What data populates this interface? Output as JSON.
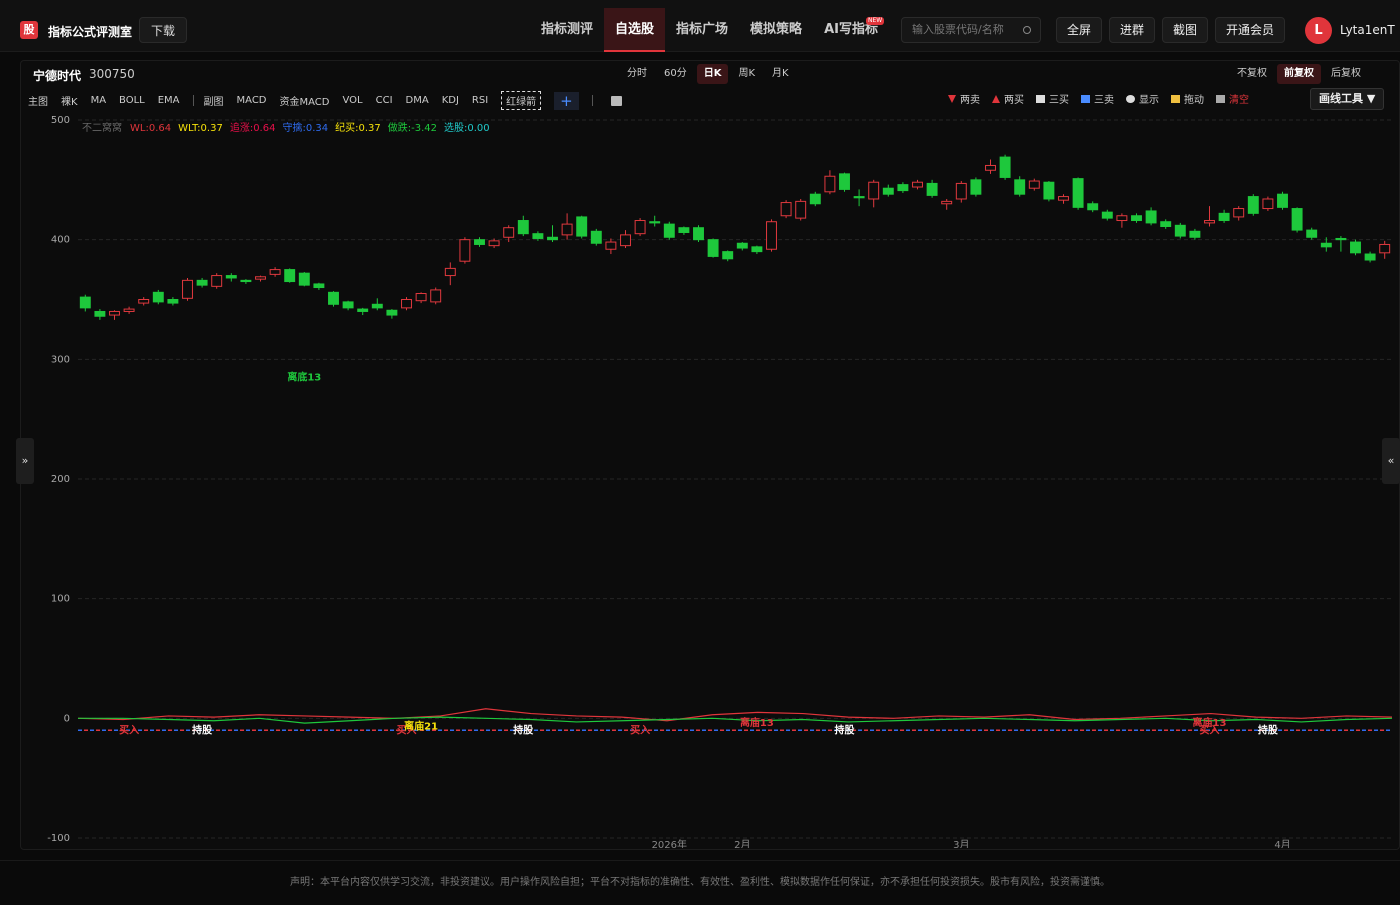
{
  "header": {
    "logo": "股",
    "app_name": "指标公式评测室",
    "download": "下载",
    "nav": [
      "指标测评",
      "自选股",
      "指标广场",
      "模拟策略",
      "AI写指标"
    ],
    "new_badge": "NEW",
    "search_placeholder": "输入股票代码/名称",
    "buttons": [
      "全屏",
      "进群",
      "截图",
      "开通会员"
    ],
    "avatar": "L",
    "username": "Lyta1enT"
  },
  "quote_bar": {
    "name": "宁德时代",
    "code": "300750",
    "periods": [
      "分时",
      "60分",
      "日K",
      "周K",
      "月K"
    ],
    "adjust": [
      "不复权",
      "前复权",
      "后复权"
    ]
  },
  "toolbar": {
    "main": [
      "主图",
      "裸K",
      "MA",
      "BOLL",
      "EMA"
    ],
    "sub": [
      "副图",
      "MACD",
      "资金MACD",
      "VOL",
      "CCI",
      "DMA",
      "KDJ",
      "RSI",
      "红绿箭"
    ],
    "add": "+",
    "tools": [
      "两卖",
      "两买",
      "三买",
      "三卖",
      "显示",
      "拖动",
      "清空"
    ],
    "draw_tool": "画线工具 ▼"
  },
  "side_toggles": [
    "»",
    "«"
  ],
  "chart_data": {
    "type": "candlestick",
    "legend_title": "不二窝窝",
    "legend_items": [
      {
        "text": "WL:0.64",
        "color": "#e0353b"
      },
      {
        "text": "WLT:0.37",
        "color": "#f5e10a"
      },
      {
        "text": "追涨:0.64",
        "color": "#e8104a"
      },
      {
        "text": "守擒:0.34",
        "color": "#2f6cf0"
      },
      {
        "text": "纪买:0.37",
        "color": "#f5e10a"
      },
      {
        "text": "做跌:-3.42",
        "color": "#1ec83c"
      },
      {
        "text": "选股:0.00",
        "color": "#20c9c9"
      }
    ],
    "up_color": "#e0393e",
    "down_color": "#1ec83c",
    "candles": [
      [
        352,
        354,
        340,
        343
      ],
      [
        340,
        342,
        333,
        336
      ],
      [
        337,
        341,
        333,
        340
      ],
      [
        340,
        344,
        338,
        342
      ],
      [
        347,
        352,
        345,
        350
      ],
      [
        356,
        358,
        346,
        348
      ],
      [
        350,
        352,
        345,
        347
      ],
      [
        351,
        368,
        349,
        366
      ],
      [
        366,
        368,
        360,
        362
      ],
      [
        361,
        372,
        359,
        370
      ],
      [
        370,
        372,
        365,
        368
      ],
      [
        366,
        367,
        363,
        365
      ],
      [
        367,
        370,
        365,
        369
      ],
      [
        371,
        377,
        369,
        375
      ],
      [
        375,
        376,
        364,
        365
      ],
      [
        372,
        373,
        361,
        362
      ],
      [
        363,
        364,
        358,
        360
      ],
      [
        356,
        357,
        344,
        346
      ],
      [
        348,
        349,
        341,
        343
      ],
      [
        342,
        343,
        337,
        340
      ],
      [
        346,
        351,
        341,
        343
      ],
      [
        341,
        342,
        334,
        337
      ],
      [
        343,
        352,
        341,
        350
      ],
      [
        349,
        356,
        347,
        355
      ],
      [
        348,
        360,
        346,
        358
      ],
      [
        370,
        381,
        362,
        376
      ],
      [
        382,
        402,
        380,
        400
      ],
      [
        400,
        402,
        394,
        396
      ],
      [
        395,
        401,
        393,
        399
      ],
      [
        402,
        412,
        398,
        410
      ],
      [
        416,
        420,
        403,
        405
      ],
      [
        405,
        407,
        399,
        401
      ],
      [
        402,
        412,
        398,
        400
      ],
      [
        404,
        422,
        400,
        413
      ],
      [
        419,
        420,
        401,
        403
      ],
      [
        407,
        409,
        395,
        397
      ],
      [
        392,
        401,
        388,
        398
      ],
      [
        395,
        408,
        393,
        404
      ],
      [
        405,
        418,
        403,
        416
      ],
      [
        415,
        420,
        411,
        414
      ],
      [
        413,
        415,
        400,
        402
      ],
      [
        410,
        411,
        404,
        406
      ],
      [
        410,
        412,
        398,
        400
      ],
      [
        400,
        401,
        385,
        386
      ],
      [
        390,
        391,
        382,
        384
      ],
      [
        397,
        398,
        391,
        393
      ],
      [
        394,
        395,
        388,
        390
      ],
      [
        392,
        417,
        390,
        415
      ],
      [
        420,
        433,
        418,
        431
      ],
      [
        418,
        434,
        416,
        432
      ],
      [
        438,
        440,
        428,
        430
      ],
      [
        440,
        458,
        438,
        453
      ],
      [
        455,
        456,
        440,
        442
      ],
      [
        436,
        442,
        428,
        435
      ],
      [
        434,
        450,
        427,
        448
      ],
      [
        443,
        446,
        436,
        438
      ],
      [
        446,
        448,
        439,
        441
      ],
      [
        444,
        450,
        442,
        448
      ],
      [
        447,
        450,
        435,
        437
      ],
      [
        430,
        434,
        425,
        432
      ],
      [
        434,
        449,
        431,
        447
      ],
      [
        450,
        452,
        436,
        438
      ],
      [
        458,
        467,
        455,
        462
      ],
      [
        469,
        471,
        450,
        452
      ],
      [
        450,
        453,
        436,
        438
      ],
      [
        443,
        451,
        441,
        449
      ],
      [
        448,
        449,
        432,
        434
      ],
      [
        433,
        438,
        430,
        436
      ],
      [
        451,
        452,
        425,
        427
      ],
      [
        430,
        432,
        423,
        425
      ],
      [
        423,
        425,
        416,
        418
      ],
      [
        416,
        422,
        410,
        420
      ],
      [
        420,
        422,
        414,
        416
      ],
      [
        424,
        427,
        412,
        414
      ],
      [
        415,
        417,
        409,
        411
      ],
      [
        412,
        414,
        401,
        403
      ],
      [
        407,
        409,
        400,
        402
      ],
      [
        414,
        428,
        411,
        416
      ],
      [
        422,
        425,
        414,
        416
      ],
      [
        419,
        428,
        416,
        426
      ],
      [
        436,
        438,
        420,
        422
      ],
      [
        426,
        436,
        424,
        434
      ],
      [
        438,
        440,
        425,
        427
      ],
      [
        426,
        427,
        406,
        408
      ],
      [
        408,
        410,
        400,
        402
      ],
      [
        397,
        402,
        390,
        394
      ],
      [
        401,
        403,
        390,
        400
      ],
      [
        398,
        400,
        387,
        389
      ],
      [
        388,
        390,
        381,
        383
      ],
      [
        389,
        399,
        384,
        396
      ]
    ],
    "categories": [
      null,
      null,
      null,
      null,
      null,
      null,
      null,
      null,
      null,
      null,
      null,
      null,
      null,
      null,
      null,
      null,
      null,
      null,
      null,
      null,
      null,
      null,
      null,
      null,
      null,
      null,
      null,
      null,
      null,
      null,
      null,
      null,
      null,
      null,
      null,
      null,
      null,
      null,
      null,
      null,
      "2026年",
      null,
      null,
      null,
      null,
      "2月",
      null,
      null,
      null,
      null,
      null,
      null,
      null,
      null,
      null,
      null,
      null,
      null,
      null,
      null,
      "3月",
      null,
      null,
      null,
      null,
      null,
      null,
      null,
      null,
      null,
      null,
      null,
      null,
      null,
      null,
      null,
      null,
      null,
      null,
      null,
      null,
      null,
      "4月",
      null,
      null,
      null,
      null,
      null,
      null,
      null
    ],
    "indicator_series": [
      {
        "color": "#e0353b",
        "values": [
          0,
          -1,
          2,
          1,
          3,
          2,
          1,
          0,
          2,
          8,
          4,
          2,
          1,
          -2,
          3,
          5,
          4,
          1,
          0,
          2,
          1,
          3,
          -1,
          0,
          2,
          4,
          1,
          0,
          2,
          1
        ]
      },
      {
        "color": "#1ec83c",
        "values": [
          0,
          0,
          -1,
          -2,
          0,
          -4,
          -2,
          0,
          1,
          0,
          -1,
          -3,
          -2,
          -1,
          0,
          -2,
          -1,
          -3,
          -2,
          -1,
          0,
          -1,
          -2,
          -1,
          0,
          -2,
          -1,
          -3,
          -1,
          0
        ]
      }
    ],
    "signal_level": -10,
    "annotations": [
      {
        "text": "离底13",
        "color": "#1ec83c",
        "index": 15,
        "value": 285
      },
      {
        "text": "买入",
        "color": "#e0353b",
        "index": 3,
        "value": -10
      },
      {
        "text": "持股",
        "color": "#ffffff",
        "index": 8,
        "value": -10
      },
      {
        "text": "买入",
        "color": "#e0353b",
        "index": 22,
        "value": -10
      },
      {
        "text": "离庙21",
        "color": "#f5e10a",
        "index": 23,
        "value": -7
      },
      {
        "text": "持股",
        "color": "#ffffff",
        "index": 30,
        "value": -10
      },
      {
        "text": "买入",
        "color": "#e0353b",
        "index": 38,
        "value": -10
      },
      {
        "text": "离庙13",
        "color": "#e0353b",
        "index": 46,
        "value": -4
      },
      {
        "text": "持股",
        "color": "#ffffff",
        "index": 52,
        "value": -10
      },
      {
        "text": "离庙13",
        "color": "#e0353b",
        "index": 77,
        "value": -4
      },
      {
        "text": "买入",
        "color": "#e0353b",
        "index": 77,
        "value": -10
      },
      {
        "text": "持股",
        "color": "#ffffff",
        "index": 81,
        "value": -10
      }
    ],
    "ylim": [
      -100,
      500
    ],
    "yticks": [
      -100,
      0,
      100,
      200,
      300,
      400,
      500
    ],
    "grid": true
  },
  "footer": {
    "disclaimer": "声明：本平台内容仅供学习交流，非投资建议。用户操作风险自担；平台不对指标的准确性、有效性、盈利性、模拟数据作任何保证，亦不承担任何投资损失。股市有风险，投资需谨慎。"
  }
}
